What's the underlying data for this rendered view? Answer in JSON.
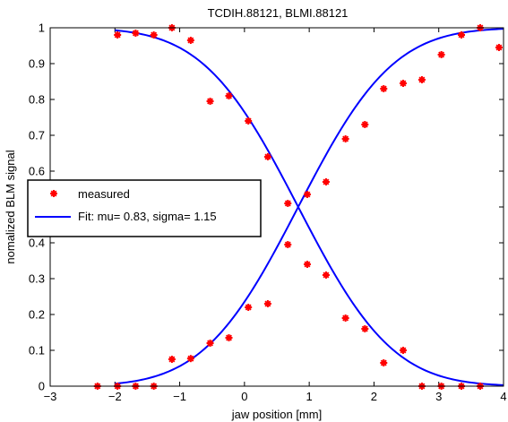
{
  "chart_data": {
    "type": "scatter",
    "title": "TCDIH.88121, BLMI.88121",
    "xlabel": "jaw position [mm]",
    "ylabel": "nomalized BLM signal",
    "xlim": [
      -3,
      4
    ],
    "ylim": [
      0,
      1
    ],
    "xticks": [
      -3,
      -2,
      -1,
      0,
      1,
      2,
      3,
      4
    ],
    "yticks": [
      0,
      0.1,
      0.2,
      0.3,
      0.4,
      0.5,
      0.6,
      0.7,
      0.8,
      0.9,
      1
    ],
    "grid": false,
    "legend_position": "middle-left",
    "legend": [
      "measured",
      "Fit: mu= 0.83, sigma= 1.15"
    ],
    "series": [
      {
        "kind": "points",
        "marker": "asterisk",
        "color": "#ff0000",
        "x": [
          -2.27,
          -1.96,
          -1.68,
          -1.4,
          -1.12,
          -0.83,
          -0.53,
          -0.24,
          0.06,
          0.36,
          0.67,
          0.97,
          1.26,
          1.56,
          1.86,
          2.15,
          2.45,
          2.74,
          3.04,
          3.35,
          3.64,
          3.93
        ],
        "y": [
          0.0,
          0.0,
          0.0,
          0.0,
          0.075,
          0.077,
          0.12,
          0.135,
          0.22,
          0.23,
          0.395,
          0.535,
          0.57,
          0.69,
          0.73,
          0.83,
          0.845,
          0.855,
          0.925,
          0.98,
          1.0,
          0.945
        ]
      },
      {
        "kind": "points",
        "marker": "asterisk",
        "color": "#ff0000",
        "x": [
          -1.96,
          -1.68,
          -1.4,
          -1.12,
          -0.83,
          -0.53,
          -0.24,
          0.06,
          0.36,
          0.67,
          0.97,
          1.26,
          1.56,
          1.86,
          2.15,
          2.45,
          2.74,
          3.04,
          3.35,
          3.64
        ],
        "y": [
          0.98,
          0.985,
          0.98,
          1.0,
          0.965,
          0.795,
          0.81,
          0.74,
          0.64,
          0.51,
          0.34,
          0.31,
          0.19,
          0.16,
          0.065,
          0.1,
          0.0,
          0.0,
          0.0,
          0.0
        ]
      },
      {
        "kind": "fit-rising",
        "color": "#0000ff",
        "mu": 0.83,
        "sigma": 1.15,
        "x_range": [
          -2,
          4
        ]
      },
      {
        "kind": "fit-falling",
        "color": "#0000ff",
        "mu": 0.83,
        "sigma": 1.15,
        "x_range": [
          -2,
          4
        ]
      }
    ]
  }
}
